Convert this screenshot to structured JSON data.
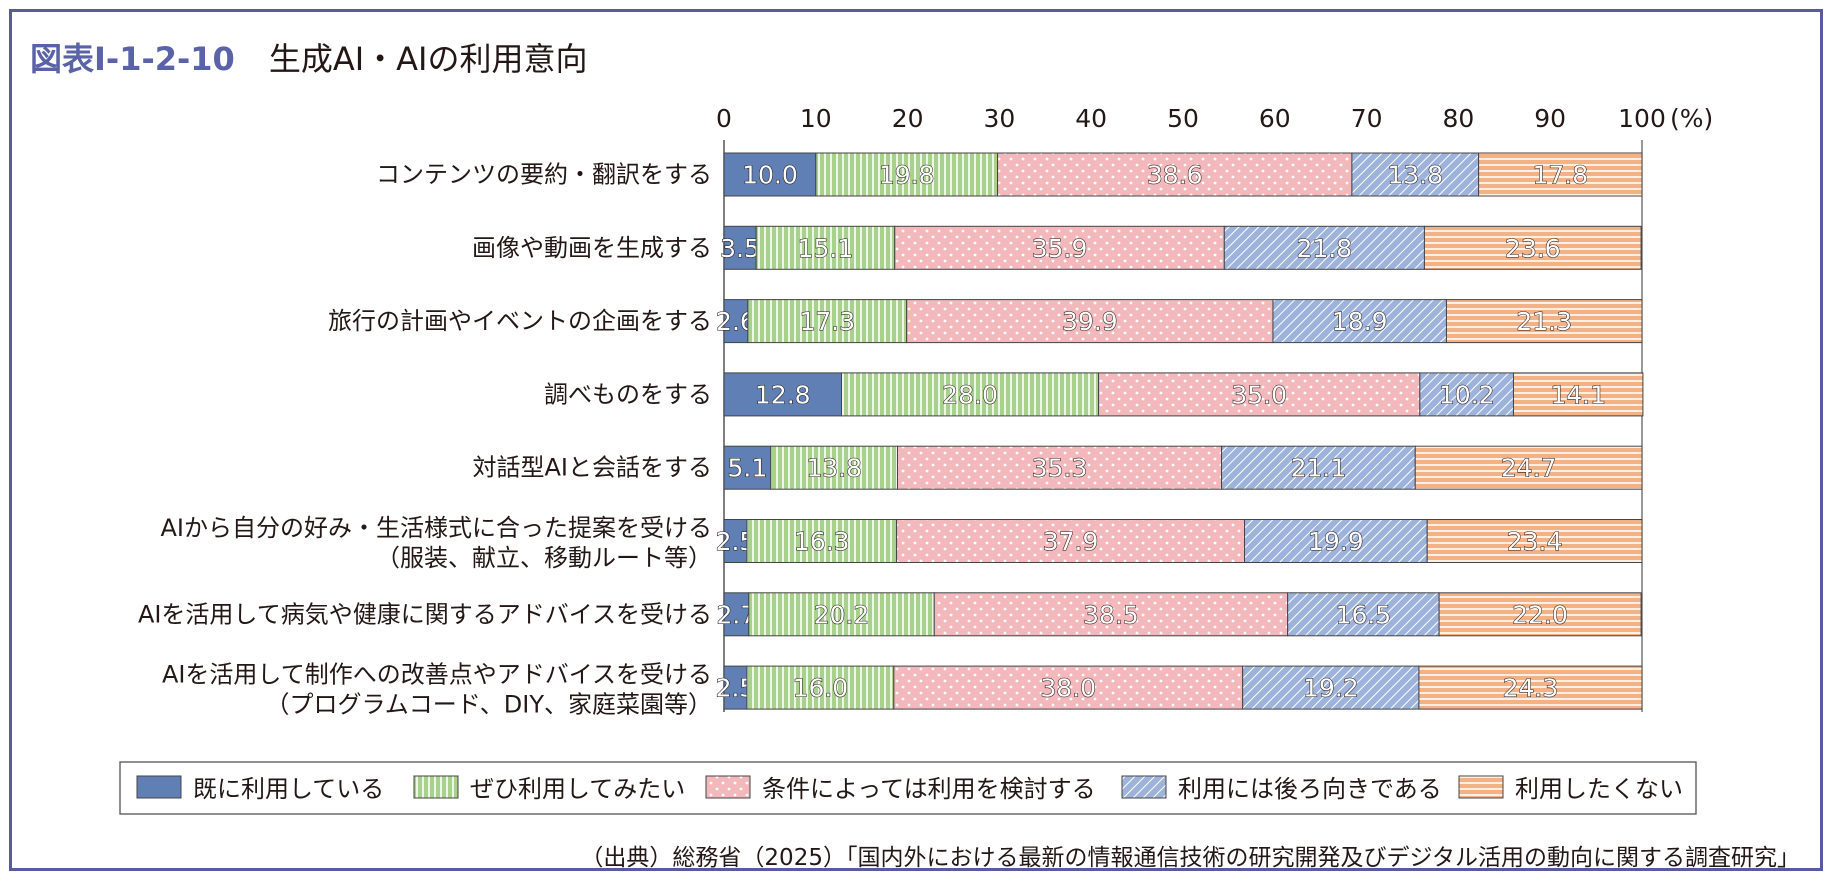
{
  "header": {
    "figure_number": "図表Ⅰ-1-2-10",
    "title": "生成AI・AIの利用意向"
  },
  "source": "（出典）総務省（2025）「国内外における最新の情報通信技術の研究開発及びデジタル活用の動向に関する調査研究」",
  "chart_data": {
    "type": "bar",
    "orientation": "horizontal",
    "stacked": true,
    "xlim": [
      0,
      100
    ],
    "xticks": [
      "0",
      "10",
      "20",
      "30",
      "40",
      "50",
      "60",
      "70",
      "80",
      "90",
      "100"
    ],
    "unit_label": "(%)",
    "legend_position": "bottom",
    "categories": [
      [
        "コンテンツの要約・翻訳をする"
      ],
      [
        "画像や動画を生成する"
      ],
      [
        "旅行の計画やイベントの企画をする"
      ],
      [
        "調べものをする"
      ],
      [
        "対話型AIと会話をする"
      ],
      [
        "AIから自分の好み・生活様式に合った提案を受ける",
        "（服装、献立、移動ルート等）"
      ],
      [
        "AIを活用して病気や健康に関するアドバイスを受ける"
      ],
      [
        "AIを活用して制作への改善点やアドバイスを受ける",
        "（プログラムコード、DIY、家庭菜園等）"
      ]
    ],
    "series": [
      {
        "name": "既に利用している",
        "color": "#5f7fb5",
        "pattern": "solid",
        "values": [
          10.0,
          3.5,
          2.6,
          12.8,
          5.1,
          2.5,
          2.7,
          2.5
        ]
      },
      {
        "name": "ぜひ利用してみたい",
        "color": "#a9d18e",
        "pattern": "vertical",
        "values": [
          19.8,
          15.1,
          17.3,
          28.0,
          13.8,
          16.3,
          20.2,
          16.0
        ]
      },
      {
        "name": "条件によっては利用を検討する",
        "color": "#f2b8bc",
        "pattern": "dots",
        "values": [
          38.6,
          35.9,
          39.9,
          35.0,
          35.3,
          37.9,
          38.5,
          38.0
        ]
      },
      {
        "name": "利用には後ろ向きである",
        "color": "#9db3dc",
        "pattern": "diagonal",
        "values": [
          13.8,
          21.8,
          18.9,
          10.2,
          21.1,
          19.9,
          16.5,
          19.2
        ]
      },
      {
        "name": "利用したくない",
        "color": "#f4b183",
        "pattern": "horizontal",
        "values": [
          17.8,
          23.6,
          21.3,
          14.1,
          24.7,
          23.4,
          22.0,
          24.3
        ]
      }
    ]
  }
}
